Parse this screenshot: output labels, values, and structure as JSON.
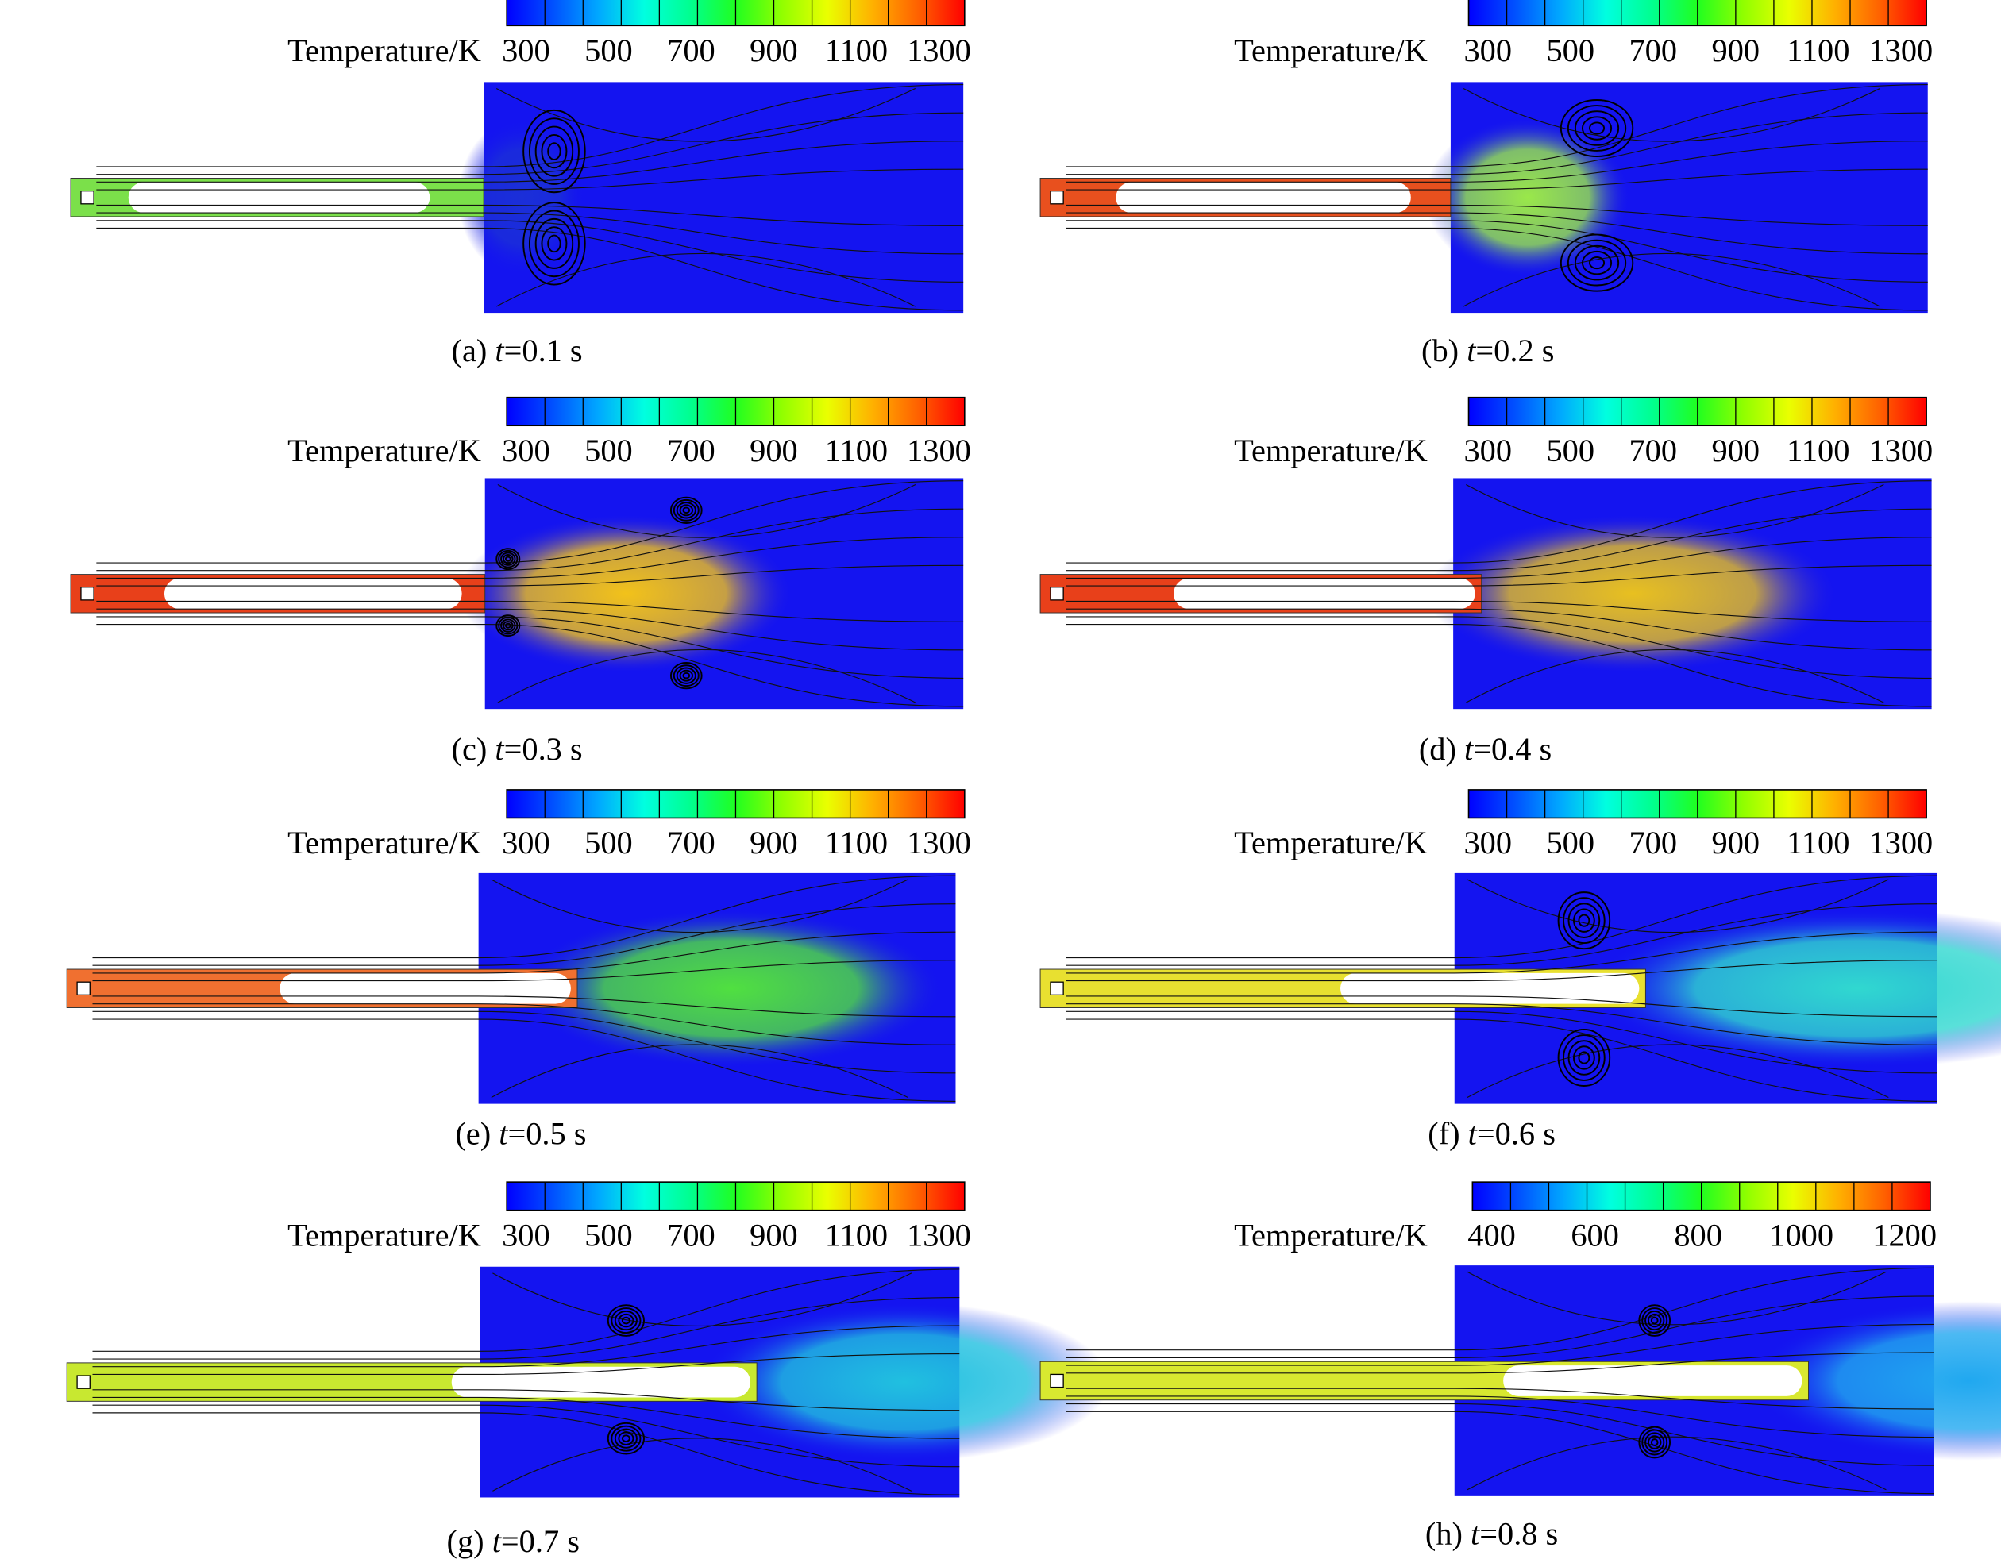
{
  "panels": [
    {
      "colorbar": {
        "label": "Temperature/K",
        "ticks": [
          300,
          500,
          700,
          900,
          1100,
          1300
        ]
      },
      "caption": {
        "label": "(a)",
        "variable": "t",
        "value": "=0.1 s"
      }
    },
    {
      "colorbar": {
        "label": "Temperature/K",
        "ticks": [
          300,
          500,
          700,
          900,
          1100,
          1300
        ]
      },
      "caption": {
        "label": "(b)",
        "variable": "t",
        "value": "=0.2 s"
      }
    },
    {
      "colorbar": {
        "label": "Temperature/K",
        "ticks": [
          300,
          500,
          700,
          900,
          1100,
          1300
        ]
      },
      "caption": {
        "label": "(c)",
        "variable": "t",
        "value": "=0.3 s"
      }
    },
    {
      "colorbar": {
        "label": "Temperature/K",
        "ticks": [
          300,
          500,
          700,
          900,
          1100,
          1300
        ]
      },
      "caption": {
        "label": "(d)",
        "variable": "t",
        "value": "=0.4 s"
      }
    },
    {
      "colorbar": {
        "label": "Temperature/K",
        "ticks": [
          300,
          500,
          700,
          900,
          1100,
          1300
        ]
      },
      "caption": {
        "label": "(e)",
        "variable": "t",
        "value": "=0.5 s"
      }
    },
    {
      "colorbar": {
        "label": "Temperature/K",
        "ticks": [
          300,
          500,
          700,
          900,
          1100,
          1300
        ]
      },
      "caption": {
        "label": "(f)",
        "variable": "t",
        "value": "=0.6 s"
      }
    },
    {
      "colorbar": {
        "label": "Temperature/K",
        "ticks": [
          300,
          500,
          700,
          900,
          1100,
          1300
        ]
      },
      "caption": {
        "label": "(g)",
        "variable": "t",
        "value": "=0.7 s"
      }
    },
    {
      "colorbar": {
        "label": "Temperature/K",
        "ticks": [
          400,
          600,
          800,
          1000,
          1200
        ]
      },
      "caption": {
        "label": "(h)",
        "variable": "t",
        "value": "=0.8 s"
      }
    }
  ]
}
